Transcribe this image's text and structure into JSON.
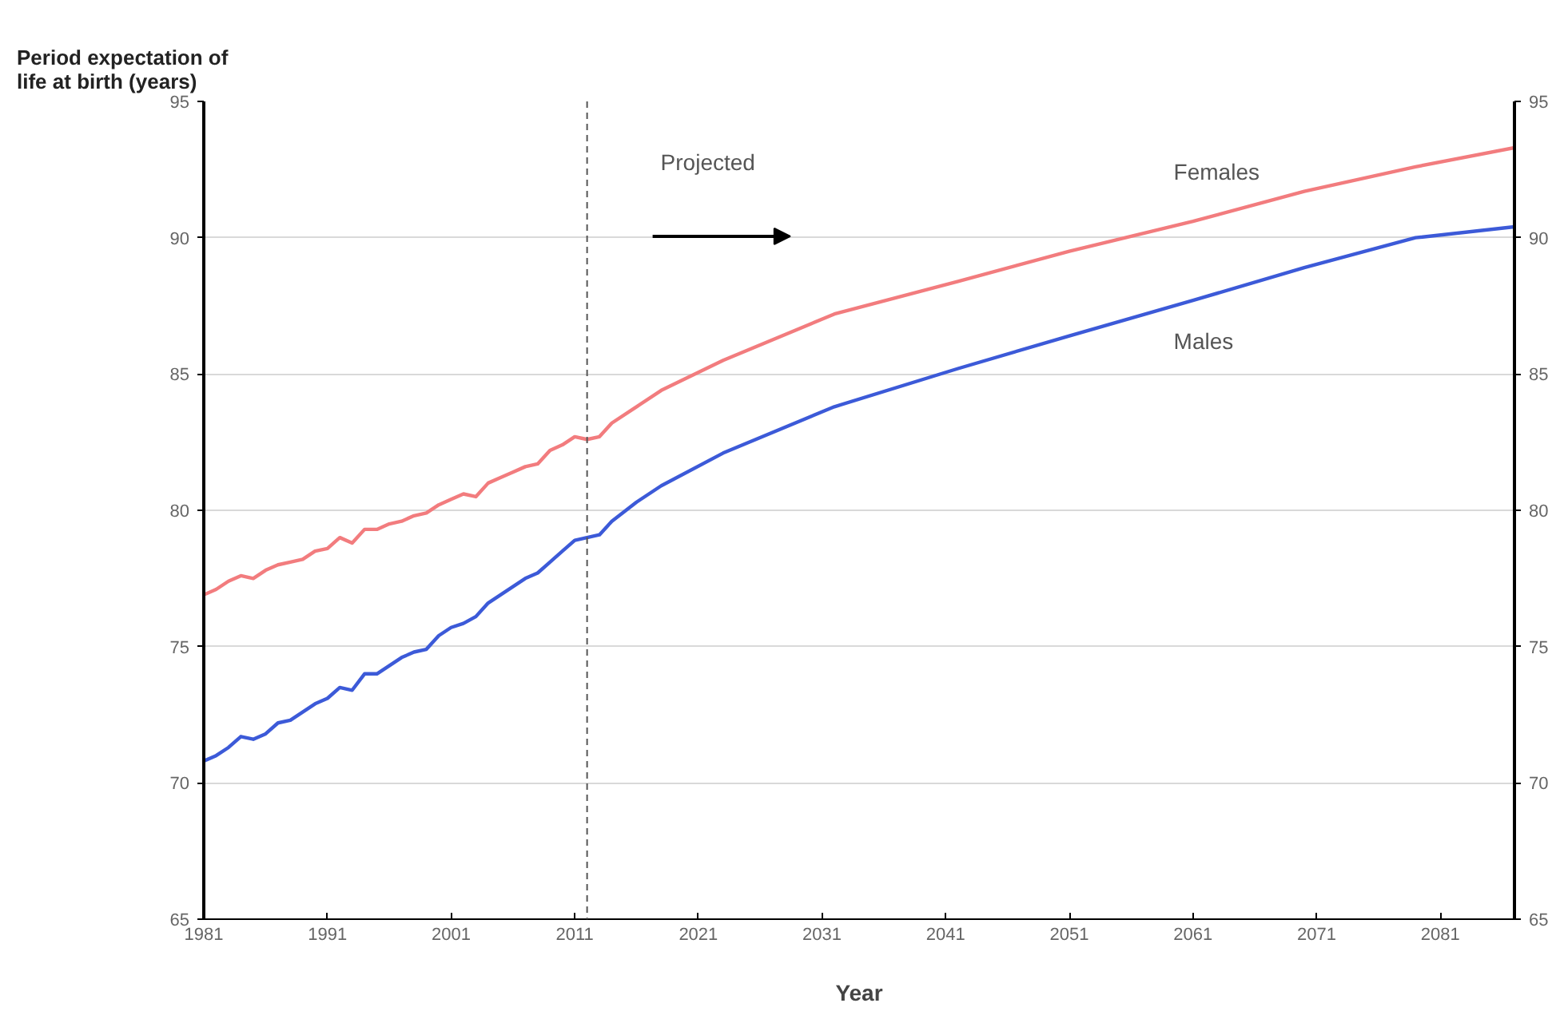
{
  "chart_data": {
    "type": "line",
    "xlabel": "Year",
    "ylabel": "Period expectation  of\nlife at birth (years)",
    "xlim": [
      1981,
      2087
    ],
    "xticks": [
      1981,
      1991,
      2001,
      2011,
      2021,
      2031,
      2041,
      2051,
      2061,
      2071,
      2081
    ],
    "ylim": [
      65,
      95
    ],
    "yticks": [
      65,
      70,
      75,
      80,
      85,
      90,
      95
    ],
    "y2lim": [
      65,
      95
    ],
    "y2ticks": [
      65,
      70,
      75,
      80,
      85,
      90,
      95
    ],
    "grid": "y",
    "legend": false,
    "marker": "none",
    "line_style": "solid",
    "ref_lines": [
      {
        "axis": "x",
        "value": 2012,
        "color": "#555555",
        "line_style": "dashed"
      }
    ],
    "annotations": [
      "Projected"
    ],
    "series": [
      {
        "name": "Females",
        "color": "#f27c7e",
        "x": [
          1981,
          1982,
          1983,
          1984,
          1985,
          1986,
          1987,
          1988,
          1989,
          1990,
          1991,
          1992,
          1993,
          1994,
          1995,
          1996,
          1997,
          1998,
          1999,
          2000,
          2001,
          2002,
          2003,
          2004,
          2005,
          2006,
          2007,
          2008,
          2009,
          2010,
          2011,
          2012,
          2013,
          2014,
          2016,
          2018,
          2023,
          2032,
          2042,
          2051,
          2061,
          2070,
          2079,
          2087
        ],
        "values": [
          76.9,
          77.1,
          77.4,
          77.6,
          77.5,
          77.8,
          78.0,
          78.1,
          78.2,
          78.5,
          78.6,
          79.0,
          78.8,
          79.3,
          79.3,
          79.5,
          79.6,
          79.8,
          79.9,
          80.2,
          80.4,
          80.6,
          80.5,
          81.0,
          81.2,
          81.4,
          81.6,
          81.7,
          82.2,
          82.4,
          82.7,
          82.6,
          82.7,
          83.2,
          83.8,
          84.4,
          85.5,
          87.2,
          88.4,
          89.5,
          90.6,
          91.7,
          92.6,
          93.3
        ]
      },
      {
        "name": "Males",
        "color": "#3c5ad8",
        "x": [
          1981,
          1982,
          1983,
          1984,
          1985,
          1986,
          1987,
          1988,
          1989,
          1990,
          1991,
          1992,
          1993,
          1994,
          1995,
          1996,
          1997,
          1998,
          1999,
          2000,
          2001,
          2002,
          2003,
          2004,
          2005,
          2006,
          2007,
          2008,
          2009,
          2010,
          2011,
          2012,
          2013,
          2014,
          2016,
          2018,
          2023,
          2032,
          2042,
          2051,
          2061,
          2070,
          2079,
          2087
        ],
        "values": [
          70.8,
          71.0,
          71.3,
          71.7,
          71.6,
          71.8,
          72.2,
          72.3,
          72.6,
          72.9,
          73.1,
          73.5,
          73.4,
          74.0,
          74.0,
          74.3,
          74.6,
          74.8,
          74.9,
          75.4,
          75.7,
          75.85,
          76.1,
          76.6,
          76.9,
          77.2,
          77.5,
          77.7,
          78.1,
          78.5,
          78.9,
          79.0,
          79.1,
          79.6,
          80.3,
          80.9,
          82.1,
          83.8,
          85.2,
          86.4,
          87.7,
          88.9,
          90.0,
          90.4
        ]
      }
    ]
  }
}
